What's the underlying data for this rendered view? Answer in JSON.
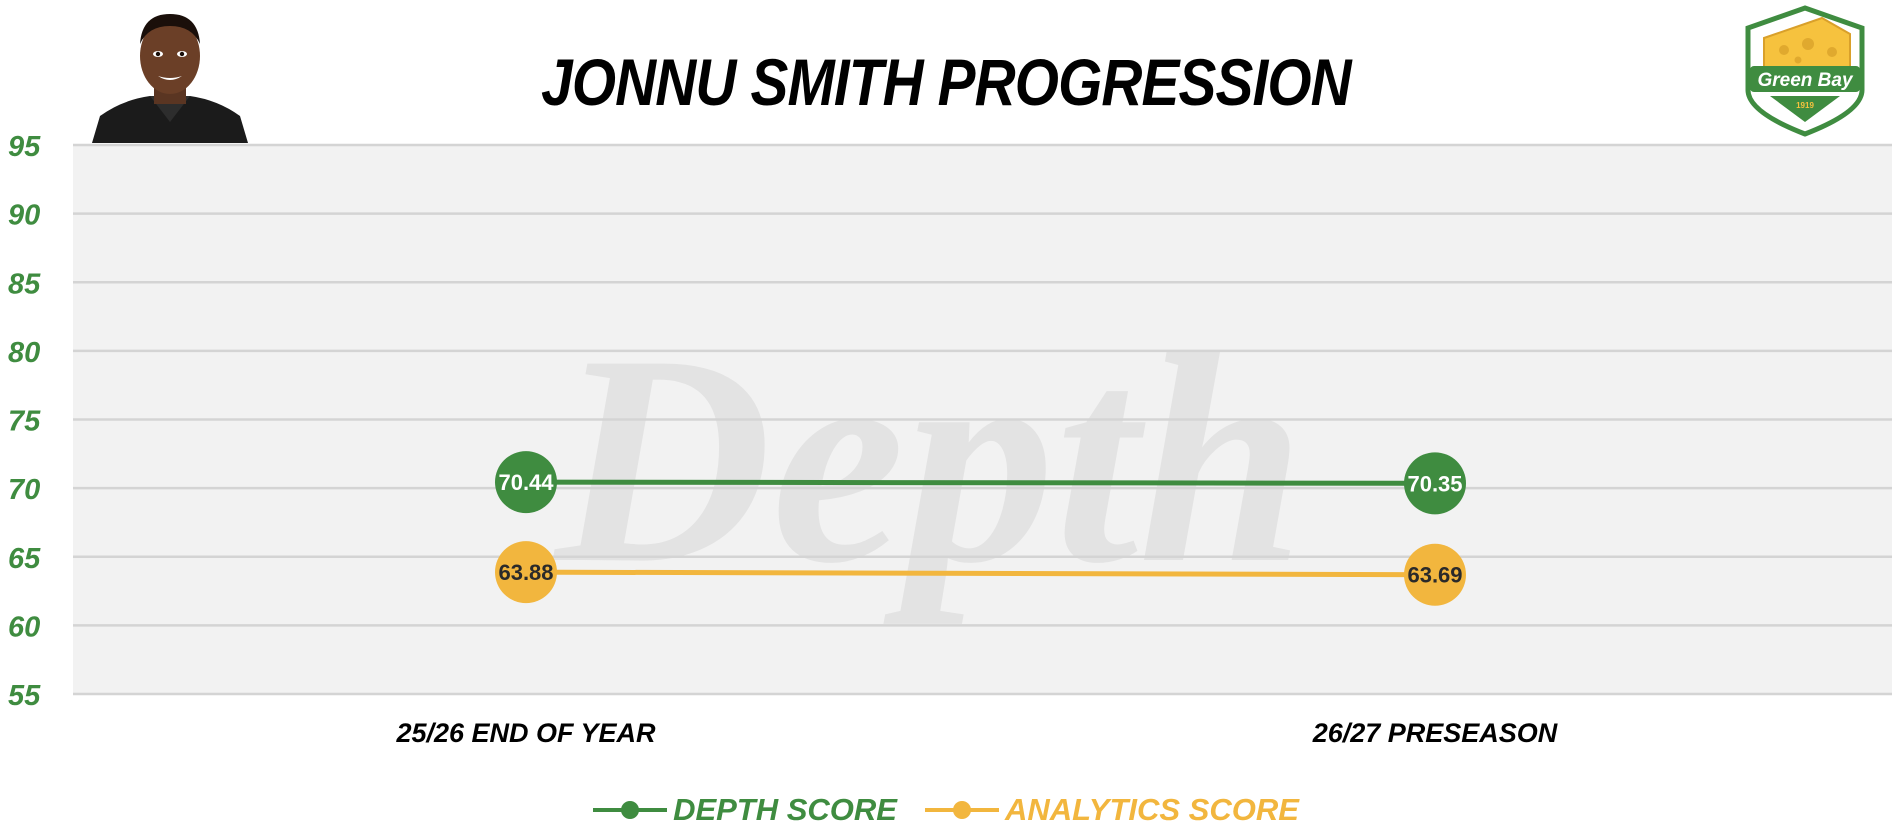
{
  "title": "JONNU SMITH PROGRESSION",
  "logo": {
    "text": "Green Bay",
    "year": "1919"
  },
  "watermark": "Depth",
  "colors": {
    "depth": "#3f8c40",
    "analytics": "#f2b63e",
    "axis_text": "#3f8c40",
    "plot_bg": "#f2f2f2",
    "grid": "#d4d4d4"
  },
  "chart_data": {
    "type": "line",
    "title": "JONNU SMITH PROGRESSION",
    "categories": [
      "25/26 END OF YEAR",
      "26/27 PRESEASON"
    ],
    "yticks": [
      55,
      60,
      65,
      70,
      75,
      80,
      85,
      90,
      95
    ],
    "ylim": [
      55,
      95
    ],
    "grid": true,
    "legend_position": "bottom",
    "series": [
      {
        "name": "DEPTH SCORE",
        "color": "#3f8c40",
        "values": [
          70.44,
          70.35
        ],
        "labels": [
          "70.44",
          "70.35"
        ]
      },
      {
        "name": "ANALYTICS SCORE",
        "color": "#f2b63e",
        "values": [
          63.88,
          63.69
        ],
        "labels": [
          "63.88",
          "63.69"
        ]
      }
    ]
  }
}
